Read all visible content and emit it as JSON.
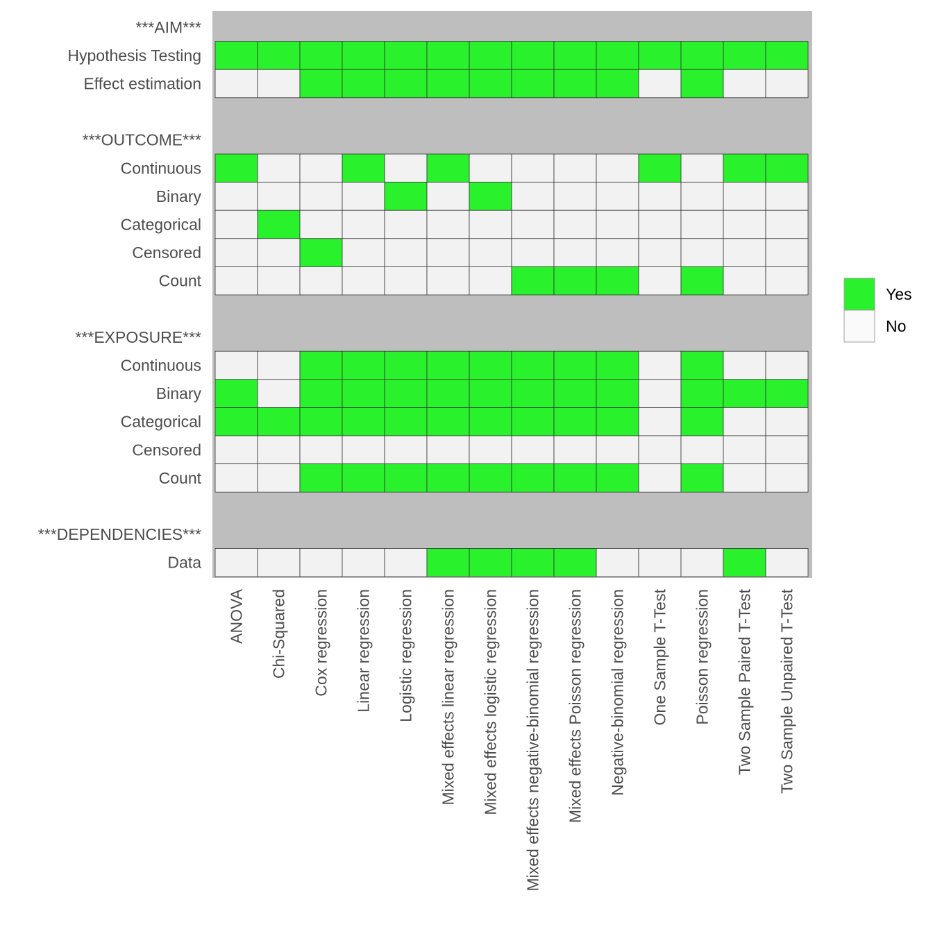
{
  "chart_data": {
    "type": "heatmap",
    "title": "",
    "xlabel": "",
    "ylabel": "",
    "columns": [
      "ANOVA",
      "Chi-Squared",
      "Cox regression",
      "Linear regression",
      "Logistic regression",
      "Mixed effects linear regression",
      "Mixed effects logistic regression",
      "Mixed effects negative-binomial regression",
      "Mixed effects Poisson regression",
      "Negative-binomial regression",
      "One Sample T-Test",
      "Poisson regression",
      "Two Sample Paired T-Test",
      "Two Sample Unpaired T-Test"
    ],
    "rows": [
      {
        "label": "***AIM***",
        "header": true
      },
      {
        "label": "Hypothesis Testing",
        "values": [
          1,
          1,
          1,
          1,
          1,
          1,
          1,
          1,
          1,
          1,
          1,
          1,
          1,
          1
        ]
      },
      {
        "label": "Effect estimation",
        "values": [
          0,
          0,
          1,
          1,
          1,
          1,
          1,
          1,
          1,
          1,
          0,
          1,
          0,
          0
        ]
      },
      {
        "label": "",
        "header": true
      },
      {
        "label": "***OUTCOME***",
        "header": true
      },
      {
        "label": "Continuous",
        "values": [
          1,
          0,
          0,
          1,
          0,
          1,
          0,
          0,
          0,
          0,
          1,
          0,
          1,
          1
        ]
      },
      {
        "label": "Binary",
        "values": [
          0,
          0,
          0,
          0,
          1,
          0,
          1,
          0,
          0,
          0,
          0,
          0,
          0,
          0
        ]
      },
      {
        "label": "Categorical",
        "values": [
          0,
          1,
          0,
          0,
          0,
          0,
          0,
          0,
          0,
          0,
          0,
          0,
          0,
          0
        ]
      },
      {
        "label": "Censored",
        "values": [
          0,
          0,
          1,
          0,
          0,
          0,
          0,
          0,
          0,
          0,
          0,
          0,
          0,
          0
        ]
      },
      {
        "label": "Count",
        "values": [
          0,
          0,
          0,
          0,
          0,
          0,
          0,
          1,
          1,
          1,
          0,
          1,
          0,
          0
        ]
      },
      {
        "label": "",
        "header": true
      },
      {
        "label": "***EXPOSURE***",
        "header": true
      },
      {
        "label": "Continuous",
        "values": [
          0,
          0,
          1,
          1,
          1,
          1,
          1,
          1,
          1,
          1,
          0,
          1,
          0,
          0
        ]
      },
      {
        "label": "Binary",
        "values": [
          1,
          0,
          1,
          1,
          1,
          1,
          1,
          1,
          1,
          1,
          0,
          1,
          1,
          1
        ]
      },
      {
        "label": "Categorical",
        "values": [
          1,
          1,
          1,
          1,
          1,
          1,
          1,
          1,
          1,
          1,
          0,
          1,
          0,
          0
        ]
      },
      {
        "label": "Censored",
        "values": [
          0,
          0,
          0,
          0,
          0,
          0,
          0,
          0,
          0,
          0,
          0,
          0,
          0,
          0
        ]
      },
      {
        "label": "Count",
        "values": [
          0,
          0,
          1,
          1,
          1,
          1,
          1,
          1,
          1,
          1,
          0,
          1,
          0,
          0
        ]
      },
      {
        "label": "",
        "header": true
      },
      {
        "label": "***DEPENDENCIES***",
        "header": true
      },
      {
        "label": "Data",
        "values": [
          0,
          0,
          0,
          0,
          0,
          1,
          1,
          1,
          1,
          0,
          0,
          0,
          1,
          0
        ]
      }
    ],
    "legend": {
      "position": "right",
      "entries": [
        {
          "label": "Yes",
          "value": 1,
          "color": "#29f22c"
        },
        {
          "label": "No",
          "value": 0,
          "color": "#fafafa"
        }
      ]
    },
    "colors": {
      "yes": "#29f22c",
      "no": "#f2f2f2",
      "panel": "#bebebe",
      "cell_border": "#333333"
    },
    "grid": false
  }
}
